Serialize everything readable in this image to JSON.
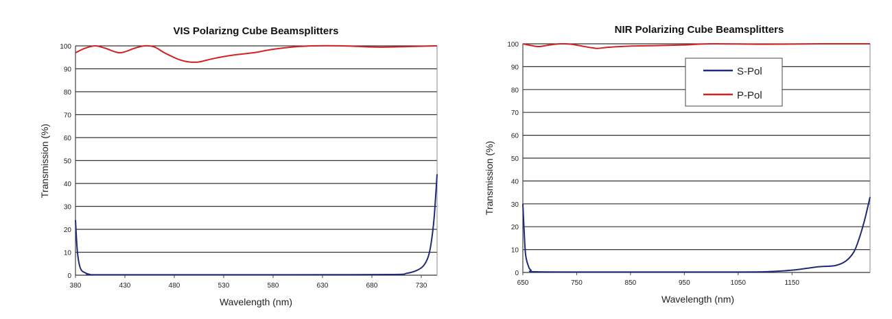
{
  "colors": {
    "s_pol": "#1f2a7a",
    "p_pol": "#d42020",
    "grid": "#333333"
  },
  "chart_data": [
    {
      "type": "line",
      "title": "VIS Polarizng Cube Beamsplitters",
      "xlabel": "Wavelength (nm)",
      "ylabel": "Transmission (%)",
      "xlim": [
        380,
        746
      ],
      "ylim": [
        0,
        100
      ],
      "xticks": [
        380,
        430,
        480,
        530,
        580,
        630,
        680,
        730
      ],
      "yticks": [
        0,
        10,
        20,
        30,
        40,
        50,
        60,
        70,
        80,
        90,
        100
      ],
      "grid": "horizontal",
      "legend": "none",
      "series": [
        {
          "key": "p_pol",
          "x": [
            380,
            390,
            400,
            410,
            425,
            440,
            450,
            460,
            470,
            485,
            495,
            505,
            520,
            540,
            560,
            580,
            600,
            620,
            650,
            680,
            700,
            746
          ],
          "y": [
            97,
            99,
            100,
            99,
            97,
            99,
            100,
            99.5,
            97,
            94,
            93,
            93,
            94.5,
            96,
            97,
            98.5,
            99.5,
            100,
            100,
            99.5,
            99.5,
            100
          ]
        },
        {
          "key": "s_pol",
          "x": [
            380,
            382,
            385,
            390,
            395,
            400,
            500,
            600,
            700,
            715,
            725,
            732,
            737,
            740,
            743,
            746
          ],
          "y": [
            24,
            10,
            3,
            1,
            0.3,
            0.2,
            0.2,
            0.2,
            0.3,
            0.8,
            2,
            4,
            8,
            14,
            25,
            44
          ]
        }
      ]
    },
    {
      "type": "line",
      "title": "NIR Polarizing Cube Beamsplitters",
      "xlabel": "Wavelength (nm)",
      "ylabel": "Transmission (%)",
      "xlim": [
        650,
        1295
      ],
      "ylim": [
        0,
        100
      ],
      "xticks": [
        650,
        750,
        850,
        950,
        1050,
        1150
      ],
      "yticks": [
        0,
        10,
        20,
        30,
        40,
        50,
        60,
        70,
        80,
        90,
        100
      ],
      "grid": "horizontal",
      "legend": "top-right",
      "legend_entries": [
        {
          "key": "s_pol",
          "label": "S-Pol"
        },
        {
          "key": "p_pol",
          "label": "P-Pol"
        }
      ],
      "series": [
        {
          "key": "p_pol",
          "x": [
            650,
            665,
            680,
            700,
            720,
            740,
            760,
            780,
            790,
            810,
            850,
            900,
            950,
            1000,
            1100,
            1200,
            1295
          ],
          "y": [
            100,
            99.3,
            98.8,
            99.5,
            100,
            99.8,
            99,
            98.2,
            98,
            98.5,
            99,
            99.2,
            99.5,
            100,
            99.8,
            100,
            100
          ]
        },
        {
          "key": "s_pol",
          "x": [
            650,
            652,
            655,
            660,
            665,
            675,
            800,
            1000,
            1100,
            1150,
            1200,
            1230,
            1250,
            1265,
            1275,
            1285,
            1295
          ],
          "y": [
            30,
            20,
            8,
            3,
            1,
            0.3,
            0.2,
            0.2,
            0.3,
            1,
            2.5,
            3,
            5,
            9,
            15,
            23,
            33
          ]
        }
      ]
    }
  ]
}
